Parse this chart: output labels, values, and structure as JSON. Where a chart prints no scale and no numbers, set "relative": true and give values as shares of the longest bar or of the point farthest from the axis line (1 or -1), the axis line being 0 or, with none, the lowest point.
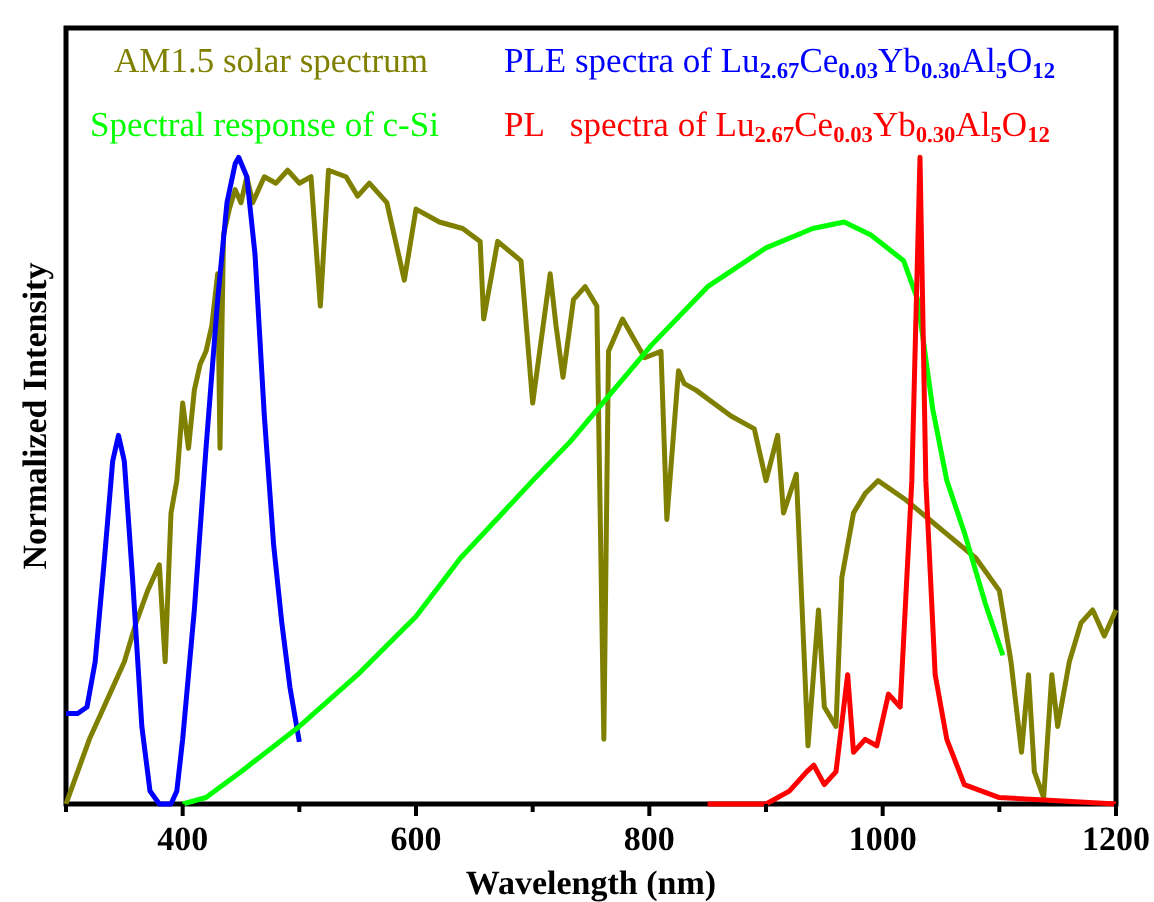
{
  "chart_data": {
    "type": "line",
    "xlabel": "Wavelength (nm)",
    "ylabel": "Normalized Intensity",
    "xlim": [
      300,
      1200
    ],
    "xticks": [
      {
        "value": 300,
        "label": null
      },
      400,
      {
        "value": 500,
        "label": null
      },
      600,
      {
        "value": 700,
        "label": null
      },
      800,
      {
        "value": 900,
        "label": null
      },
      1000,
      {
        "value": 1100,
        "label": null
      },
      1200
    ],
    "relative": true,
    "legend": "top",
    "grid": false,
    "series": [
      {
        "name": "AM1.5 solar spectrum",
        "color": "#808000",
        "x": [
          300,
          310,
          320,
          330,
          340,
          350,
          360,
          370,
          380,
          385,
          390,
          395,
          400,
          405,
          410,
          415,
          420,
          425,
          430,
          432,
          435,
          440,
          445,
          450,
          455,
          460,
          470,
          480,
          490,
          500,
          510,
          518,
          525,
          540,
          550,
          560,
          575,
          590,
          600,
          620,
          640,
          655,
          658,
          670,
          690,
          700,
          715,
          720,
          726,
          735,
          745,
          755,
          761,
          765,
          777,
          796,
          810,
          815,
          825,
          830,
          840,
          870,
          890,
          900,
          910,
          915,
          926,
          936,
          945,
          950,
          960,
          965,
          975,
          985,
          996,
          1020,
          1040,
          1060,
          1080,
          1100,
          1110,
          1119,
          1125,
          1130,
          1138,
          1145,
          1150,
          1160,
          1170,
          1180,
          1190,
          1200
        ],
        "values": [
          0,
          0.05,
          0.1,
          0.14,
          0.18,
          0.22,
          0.28,
          0.33,
          0.37,
          0.22,
          0.45,
          0.5,
          0.62,
          0.55,
          0.64,
          0.68,
          0.7,
          0.74,
          0.82,
          0.55,
          0.88,
          0.92,
          0.95,
          0.93,
          0.97,
          0.93,
          0.97,
          0.96,
          0.98,
          0.96,
          0.97,
          0.77,
          0.98,
          0.97,
          0.94,
          0.96,
          0.93,
          0.81,
          0.92,
          0.9,
          0.89,
          0.87,
          0.75,
          0.87,
          0.84,
          0.62,
          0.82,
          0.74,
          0.66,
          0.78,
          0.8,
          0.77,
          0.1,
          0.7,
          0.75,
          0.69,
          0.7,
          0.44,
          0.67,
          0.65,
          0.64,
          0.6,
          0.58,
          0.5,
          0.57,
          0.45,
          0.51,
          0.09,
          0.3,
          0.15,
          0.12,
          0.35,
          0.45,
          0.48,
          0.5,
          0.47,
          0.44,
          0.41,
          0.38,
          0.33,
          0.22,
          0.08,
          0.2,
          0.05,
          0.01,
          0.2,
          0.12,
          0.22,
          0.28,
          0.3,
          0.26,
          0.3
        ]
      },
      {
        "name": "PLE spectra of Lu$_{2.67}$Ce$_{0.03}$Yb$_{0.30}$Al$_{5}$O$_{12}$",
        "color": "#0000ff",
        "x": [
          300,
          310,
          318,
          325,
          333,
          340,
          345,
          350,
          357,
          365,
          372,
          380,
          390,
          395,
          400,
          410,
          420,
          430,
          438,
          445,
          448,
          455,
          462,
          470,
          478,
          485,
          492,
          500
        ],
        "values": [
          0.14,
          0.14,
          0.15,
          0.22,
          0.38,
          0.53,
          0.57,
          0.53,
          0.35,
          0.12,
          0.02,
          0,
          0,
          0.02,
          0.1,
          0.3,
          0.55,
          0.78,
          0.93,
          0.99,
          1,
          0.97,
          0.85,
          0.6,
          0.4,
          0.28,
          0.18,
          0.096
        ]
      },
      {
        "name": "Spectral response of c-Si",
        "color": "#00ff00",
        "x": [
          400,
          420,
          450,
          500,
          550,
          600,
          638,
          700,
          732,
          760,
          802,
          850,
          900,
          940,
          967,
          990,
          1018,
          1030,
          1043,
          1055,
          1070,
          1088,
          1103
        ],
        "values": [
          0,
          0.01,
          0.05,
          0.12,
          0.2,
          0.29,
          0.38,
          0.5,
          0.56,
          0.62,
          0.71,
          0.8,
          0.86,
          0.89,
          0.9,
          0.88,
          0.84,
          0.78,
          0.61,
          0.5,
          0.42,
          0.31,
          0.23
        ]
      },
      {
        "name": "PL   spectra of Lu$_{2.67}$Ce$_{0.03}$Yb$_{0.30}$Al$_{5}$O$_{12}$",
        "color": "#ff0000",
        "x": [
          850,
          900,
          920,
          935,
          941,
          950,
          960,
          970,
          975,
          985,
          995,
          1005,
          1015,
          1025,
          1032,
          1037,
          1045,
          1055,
          1070,
          1100,
          1150,
          1200
        ],
        "values": [
          0,
          0,
          0.02,
          0.05,
          0.06,
          0.03,
          0.05,
          0.2,
          0.08,
          0.1,
          0.09,
          0.17,
          0.15,
          0.5,
          1,
          0.5,
          0.2,
          0.1,
          0.03,
          0.01,
          0.005,
          0
        ]
      }
    ]
  }
}
